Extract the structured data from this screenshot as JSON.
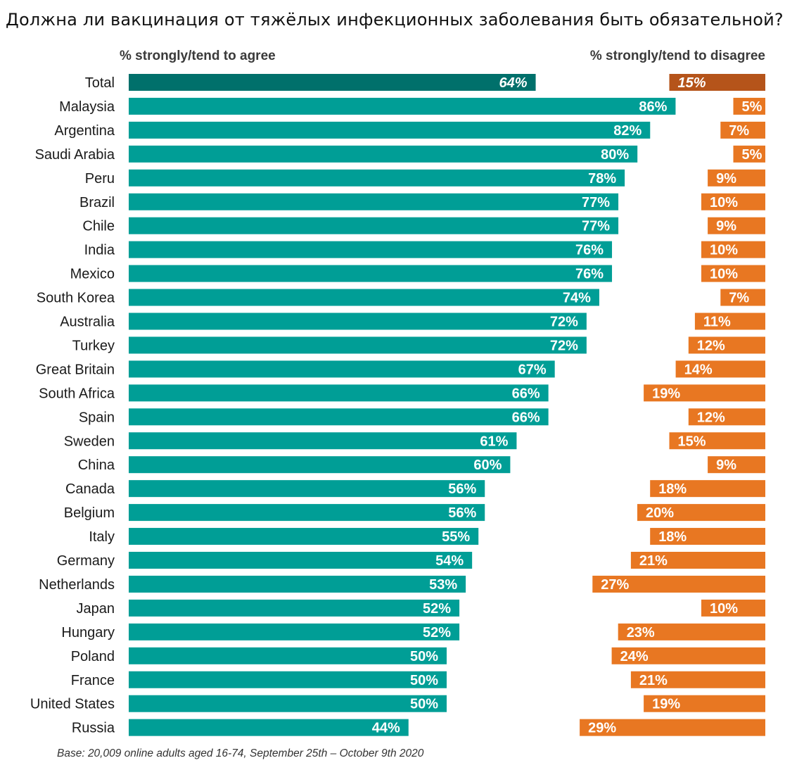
{
  "title": "Должна ли вакцинация от тяжёлых инфекционных заболевания быть обязательной?",
  "chart_data": {
    "type": "bar",
    "title": "Должна ли вакцинация от тяжёлых инфекционных заболевания быть обязательной?",
    "categories": [
      "Total",
      "Malaysia",
      "Argentina",
      "Saudi Arabia",
      "Peru",
      "Brazil",
      "Chile",
      "India",
      "Mexico",
      "South Korea",
      "Australia",
      "Turkey",
      "Great Britain",
      "South Africa",
      "Spain",
      "Sweden",
      "China",
      "Canada",
      "Belgium",
      "Italy",
      "Germany",
      "Netherlands",
      "Japan",
      "Hungary",
      "Poland",
      "France",
      "United States",
      "Russia"
    ],
    "series": [
      {
        "name": "% strongly/tend to agree",
        "values": [
          64,
          86,
          82,
          80,
          78,
          77,
          77,
          76,
          76,
          74,
          72,
          72,
          67,
          66,
          66,
          61,
          60,
          56,
          56,
          55,
          54,
          53,
          52,
          52,
          50,
          50,
          50,
          44
        ],
        "labels": [
          "64%",
          "86%",
          "82%",
          "80%",
          "78%",
          "77%",
          "77%",
          "76%",
          "76%",
          "74%",
          "72%",
          "72%",
          "67%",
          "66%",
          "66%",
          "61%",
          "60%",
          "56%",
          "56%",
          "55%",
          "54%",
          "53%",
          "52%",
          "52%",
          "50%",
          "50%",
          "50%",
          "44%"
        ],
        "color": "#009E96",
        "highlight_color": "#00706B"
      },
      {
        "name": "% strongly/tend to disagree",
        "values": [
          15,
          5,
          7,
          5,
          9,
          10,
          9,
          10,
          10,
          7,
          11,
          12,
          14,
          19,
          12,
          15,
          9,
          18,
          20,
          18,
          21,
          27,
          10,
          23,
          24,
          21,
          19,
          29
        ],
        "labels": [
          "15%",
          "5%",
          "7%",
          "5%",
          "9%",
          "10%",
          "9%",
          "10%",
          "10%",
          "7%",
          "11%",
          "12%",
          "14%",
          "19%",
          "12%",
          "15%",
          "9%",
          "18%",
          "20%",
          "18%",
          "21%",
          "27%",
          "10%",
          "23%",
          "24%",
          "21%",
          "19%",
          "29%"
        ],
        "color": "#E87722",
        "highlight_color": "#B5541A"
      }
    ],
    "note": "Base: 20,009 online adults aged 16-74, September 25th – October 9th 2020"
  }
}
